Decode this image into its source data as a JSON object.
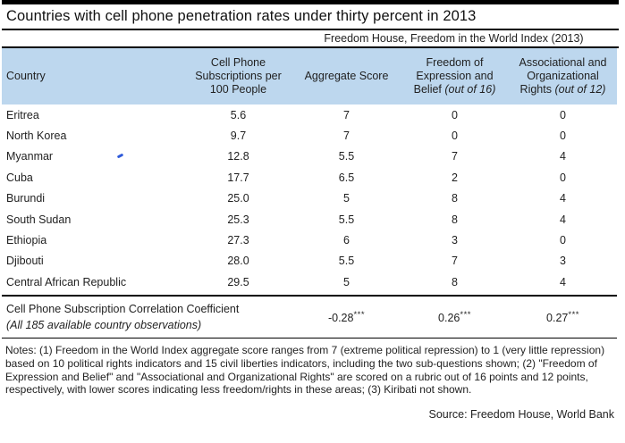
{
  "colors": {
    "header_bg": "#BDD7EE",
    "rule_color": "#000000",
    "stray_mark_blue": "#2F5BDA"
  },
  "chart_data": {
    "type": "table",
    "title": "Countries with cell phone penetration rates under thirty percent in 2013",
    "group_header": "Freedom House, Freedom in the World Index (2013)",
    "columns": {
      "country": "Country",
      "cellphone": "Cell Phone\nSubscriptions per\n100 People",
      "aggregate": "Aggregate Score",
      "expression": {
        "text": "Freedom of\nExpression and\nBelief",
        "qualifier": " (out of 16)"
      },
      "associational": {
        "text": "Associational and\nOrganizational\nRights",
        "qualifier": " (out of 12)"
      }
    },
    "rows": [
      {
        "country": "Eritrea",
        "cellphone": "5.6",
        "aggregate": "7",
        "expression": "0",
        "associational": "0"
      },
      {
        "country": "North Korea",
        "cellphone": "9.7",
        "aggregate": "7",
        "expression": "0",
        "associational": "0"
      },
      {
        "country": "Myanmar",
        "cellphone": "12.8",
        "aggregate": "5.5",
        "expression": "7",
        "associational": "4"
      },
      {
        "country": "Cuba",
        "cellphone": "17.7",
        "aggregate": "6.5",
        "expression": "2",
        "associational": "0"
      },
      {
        "country": "Burundi",
        "cellphone": "25.0",
        "aggregate": "5",
        "expression": "8",
        "associational": "4"
      },
      {
        "country": "South Sudan",
        "cellphone": "25.3",
        "aggregate": "5.5",
        "expression": "8",
        "associational": "4"
      },
      {
        "country": "Ethiopia",
        "cellphone": "27.3",
        "aggregate": "6",
        "expression": "3",
        "associational": "0"
      },
      {
        "country": "Djibouti",
        "cellphone": "28.0",
        "aggregate": "5.5",
        "expression": "7",
        "associational": "3"
      },
      {
        "country": "Central African Republic",
        "cellphone": "29.5",
        "aggregate": "5",
        "expression": "8",
        "associational": "4"
      }
    ],
    "correlation": {
      "label": "Cell Phone Subscription Correlation Coefficient",
      "sublabel": "(All 185 available country observations)",
      "aggregate": {
        "value": "-0.28",
        "stars": "***"
      },
      "expression": {
        "value": "0.26",
        "stars": "***"
      },
      "associational": {
        "value": "0.27",
        "stars": "***"
      }
    },
    "notes": "Notes: (1) Freedom in the World Index aggregate score ranges from 7 (extreme political repression) to 1 (very little repression) based on 10 political rights indicators and 15 civil liberties indicators, including the two sub-questions shown; (2) \"Freedom of Expression and Belief\" and \"Associational and Organizational Rights\" are scored on a rubric out of 16 points and 12 points, respectively, with lower scores indicating less freedom/rights in these areas; (3) Kiribati not shown.",
    "source": "Source: Freedom House, World Bank"
  }
}
